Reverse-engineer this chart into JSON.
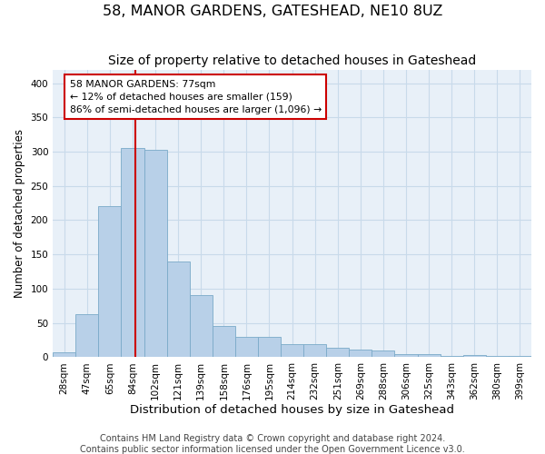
{
  "title": "58, MANOR GARDENS, GATESHEAD, NE10 8UZ",
  "subtitle": "Size of property relative to detached houses in Gateshead",
  "xlabel": "Distribution of detached houses by size in Gateshead",
  "ylabel": "Number of detached properties",
  "bar_values": [
    7,
    63,
    220,
    305,
    303,
    140,
    90,
    46,
    30,
    30,
    19,
    19,
    14,
    11,
    10,
    4,
    5,
    2,
    3,
    2,
    2
  ],
  "bar_labels": [
    "28sqm",
    "47sqm",
    "65sqm",
    "84sqm",
    "102sqm",
    "121sqm",
    "139sqm",
    "158sqm",
    "176sqm",
    "195sqm",
    "214sqm",
    "232sqm",
    "251sqm",
    "269sqm",
    "288sqm",
    "306sqm",
    "325sqm",
    "343sqm",
    "362sqm",
    "380sqm",
    "399sqm"
  ],
  "bar_color": "#b8d0e8",
  "bar_edge_color": "#7aaac8",
  "grid_color": "#c8daea",
  "background_color": "#e8f0f8",
  "marker_line_color": "#cc0000",
  "annotation_box_color": "#ffffff",
  "annotation_box_edge": "#cc0000",
  "marker_label": "58 MANOR GARDENS: 77sqm",
  "annotation_line1": "← 12% of detached houses are smaller (159)",
  "annotation_line2": "86% of semi-detached houses are larger (1,096) →",
  "ylim": [
    0,
    420
  ],
  "yticks": [
    0,
    50,
    100,
    150,
    200,
    250,
    300,
    350,
    400
  ],
  "title_fontsize": 11.5,
  "subtitle_fontsize": 10,
  "xlabel_fontsize": 9.5,
  "ylabel_fontsize": 8.5,
  "tick_fontsize": 7.5,
  "annotation_fontsize": 7.8,
  "footer_fontsize": 7,
  "footer_line1": "Contains HM Land Registry data © Crown copyright and database right 2024.",
  "footer_line2": "Contains public sector information licensed under the Open Government Licence v3.0."
}
